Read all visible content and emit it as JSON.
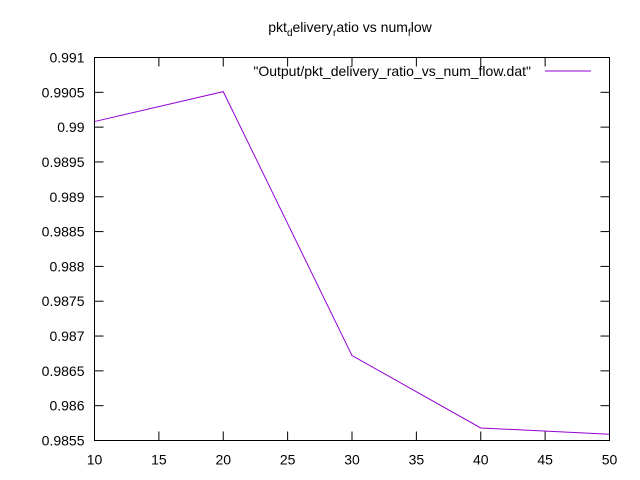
{
  "chart_data": {
    "type": "line",
    "title": {
      "parts": [
        {
          "text": "pkt",
          "sub": false
        },
        {
          "text": "d",
          "sub": true
        },
        {
          "text": "elivery",
          "sub": false
        },
        {
          "text": "r",
          "sub": true
        },
        {
          "text": "atio vs num",
          "sub": false
        },
        {
          "text": "f",
          "sub": true
        },
        {
          "text": "low",
          "sub": false
        }
      ]
    },
    "xlabel": "",
    "ylabel": "",
    "xlim": [
      10,
      50
    ],
    "ylim": [
      0.9855,
      0.991
    ],
    "xticks": [
      "10",
      "15",
      "20",
      "25",
      "30",
      "35",
      "40",
      "45",
      "50"
    ],
    "yticks": [
      "0.9855",
      "0.986",
      "0.9865",
      "0.987",
      "0.9875",
      "0.988",
      "0.9885",
      "0.989",
      "0.9895",
      "0.99",
      "0.9905",
      "0.991"
    ],
    "grid": false,
    "legend_position": "top-right",
    "series": [
      {
        "name": "\"Output/pkt_delivery_ratio_vs_num_flow.dat\"",
        "color": "#9400d3",
        "x": [
          10,
          20,
          30,
          40,
          50
        ],
        "y": [
          0.99008,
          0.99051,
          0.98672,
          0.98568,
          0.98559
        ]
      }
    ]
  }
}
